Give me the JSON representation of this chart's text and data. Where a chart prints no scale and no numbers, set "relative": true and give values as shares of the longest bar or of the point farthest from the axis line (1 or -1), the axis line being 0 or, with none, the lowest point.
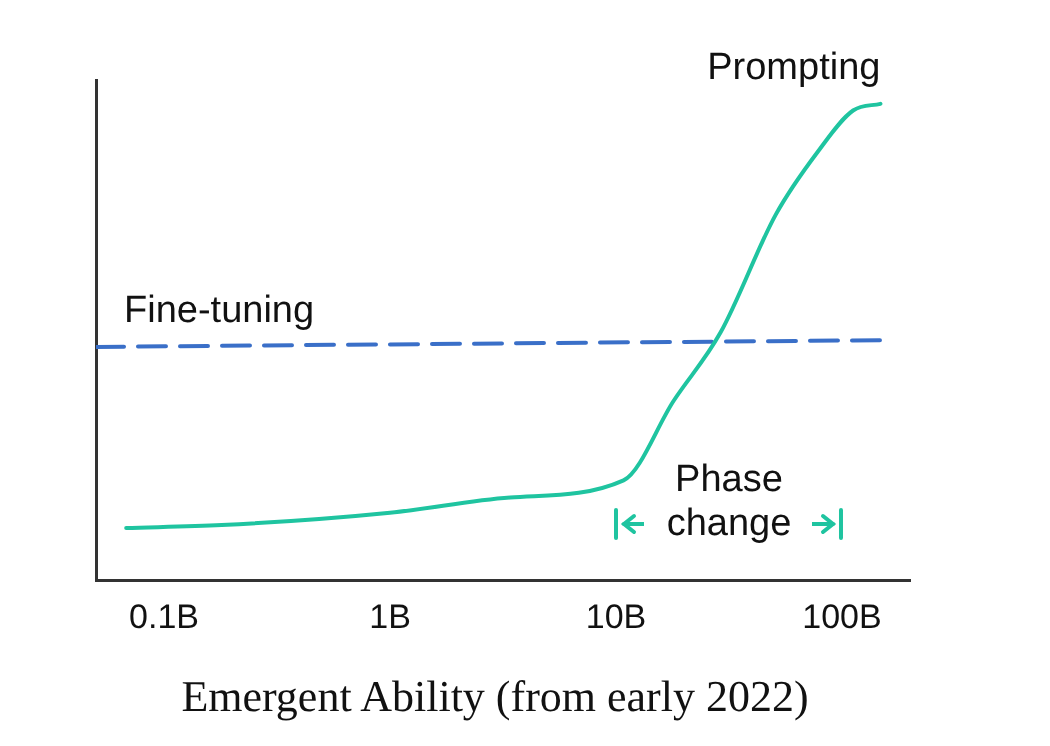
{
  "chart_data": {
    "type": "line",
    "title": "Emergent Ability (from early 2022)",
    "relative": true,
    "log": "x",
    "xlim": [
      0.05,
      200
    ],
    "xticks": [
      {
        "value": 0.1,
        "label": "0.1B"
      },
      {
        "value": 1,
        "label": "1B"
      },
      {
        "value": 10,
        "label": "10B"
      },
      {
        "value": 100,
        "label": "100B"
      }
    ],
    "tick_labels": "x",
    "grid": false,
    "legend": false,
    "marker": "none",
    "series": [
      {
        "name": "Prompting",
        "color": "#1fc4a0",
        "line_style": "solid",
        "x": [
          0.068,
          0.18,
          1,
          3.4,
          10.8,
          18,
          29,
          51,
          78,
          112,
          148
        ],
        "values": [
          0.11,
          0.116,
          0.142,
          0.174,
          0.21,
          0.377,
          0.52,
          0.768,
          0.899,
          0.986,
          1
        ]
      },
      {
        "name": "Fine-tuning",
        "color": "#3a6fc8",
        "line_style": "dashed",
        "x": [
          0.05,
          148
        ],
        "values": [
          0.49,
          0.504
        ]
      }
    ],
    "annotations": [
      "Phase change"
    ]
  }
}
